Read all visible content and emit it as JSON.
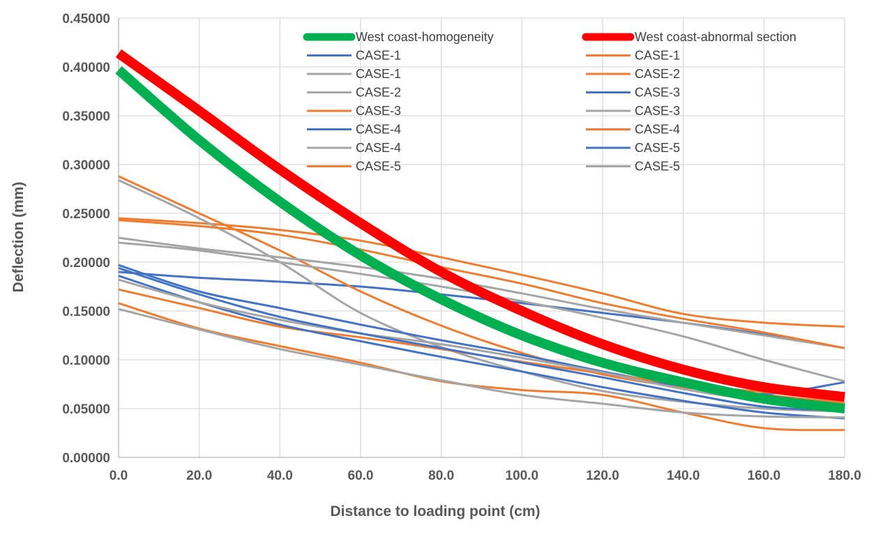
{
  "chart_data": {
    "type": "line",
    "title": "",
    "xlabel": "Distance  to loading  point  (cm)",
    "ylabel": "Deflection  (mm)",
    "xlim": [
      0,
      180
    ],
    "ylim": [
      0,
      0.45
    ],
    "x_ticks": [
      0,
      20,
      40,
      60,
      80,
      100,
      120,
      140,
      160,
      180
    ],
    "x_tick_labels": [
      "0.0",
      "20.0",
      "40.0",
      "60.0",
      "80.0",
      "100.0",
      "120.0",
      "140.0",
      "160.0",
      "180.0"
    ],
    "y_ticks": [
      0,
      0.05,
      0.1,
      0.15,
      0.2,
      0.25,
      0.3,
      0.35,
      0.4,
      0.45
    ],
    "y_tick_labels": [
      "0.00000",
      "0.05000",
      "0.10000",
      "0.15000",
      "0.20000",
      "0.25000",
      "0.30000",
      "0.35000",
      "0.40000",
      "0.45000"
    ],
    "grid": true,
    "legend_position": "top-right",
    "x": [
      0,
      20,
      40,
      60,
      80,
      100,
      120,
      140,
      160,
      180
    ],
    "series": [
      {
        "name": "West coast-homogeneity",
        "color": "#00B050",
        "weight": "heavy",
        "values": [
          0.397,
          0.325,
          0.262,
          0.207,
          0.162,
          0.125,
          0.097,
          0.077,
          0.06,
          0.05
        ]
      },
      {
        "name": "West coast-abnormal section",
        "color": "#FF0000",
        "weight": "heavy",
        "values": [
          0.414,
          0.355,
          0.295,
          0.24,
          0.19,
          0.15,
          0.116,
          0.09,
          0.072,
          0.062
        ]
      },
      {
        "name": "CASE-1",
        "color": "#4472C4",
        "weight": "normal",
        "values": [
          0.19,
          0.184,
          0.18,
          0.175,
          0.167,
          0.158,
          0.148,
          0.138,
          0.126,
          0.112
        ]
      },
      {
        "name": "CASE-1",
        "color": "#ED7D31",
        "weight": "normal",
        "values": [
          0.245,
          0.24,
          0.233,
          0.222,
          0.205,
          0.187,
          0.168,
          0.147,
          0.138,
          0.134
        ]
      },
      {
        "name": "CASE-1",
        "color": "#A5A5A5",
        "weight": "normal",
        "values": [
          0.284,
          0.245,
          0.2,
          0.148,
          0.113,
          0.088,
          0.068,
          0.057,
          0.05,
          0.047
        ]
      },
      {
        "name": "CASE-2",
        "color": "#ED7D31",
        "weight": "normal",
        "values": [
          0.288,
          0.25,
          0.212,
          0.17,
          0.135,
          0.107,
          0.085,
          0.072,
          0.064,
          0.056
        ]
      },
      {
        "name": "CASE-2",
        "color": "#A5A5A5",
        "weight": "normal",
        "values": [
          0.225,
          0.214,
          0.205,
          0.195,
          0.183,
          0.168,
          0.152,
          0.138,
          0.125,
          0.112
        ]
      },
      {
        "name": "CASE-3",
        "color": "#4472C4",
        "weight": "normal",
        "values": [
          0.197,
          0.17,
          0.153,
          0.136,
          0.12,
          0.105,
          0.088,
          0.073,
          0.065,
          0.077
        ]
      },
      {
        "name": "CASE-3",
        "color": "#ED7D31",
        "weight": "normal",
        "values": [
          0.172,
          0.153,
          0.134,
          0.123,
          0.111,
          0.098,
          0.086,
          0.075,
          0.067,
          0.06
        ]
      },
      {
        "name": "CASE-3",
        "color": "#A5A5A5",
        "weight": "normal",
        "values": [
          0.22,
          0.212,
          0.2,
          0.188,
          0.175,
          0.16,
          0.143,
          0.124,
          0.1,
          0.078
        ]
      },
      {
        "name": "CASE-4",
        "color": "#4472C4",
        "weight": "normal",
        "values": [
          0.186,
          0.159,
          0.136,
          0.119,
          0.103,
          0.088,
          0.072,
          0.058,
          0.046,
          0.04
        ]
      },
      {
        "name": "CASE-4",
        "color": "#ED7D31",
        "weight": "normal",
        "values": [
          0.158,
          0.132,
          0.114,
          0.097,
          0.078,
          0.069,
          0.064,
          0.046,
          0.03,
          0.028
        ]
      },
      {
        "name": "CASE-4",
        "color": "#A5A5A5",
        "weight": "normal",
        "values": [
          0.182,
          0.159,
          0.141,
          0.127,
          0.116,
          0.102,
          0.087,
          0.07,
          0.058,
          0.052
        ]
      },
      {
        "name": "CASE-5",
        "color": "#4472C4",
        "weight": "normal",
        "values": [
          0.194,
          0.167,
          0.144,
          0.127,
          0.112,
          0.097,
          0.082,
          0.066,
          0.052,
          0.048
        ]
      },
      {
        "name": "CASE-5",
        "color": "#ED7D31",
        "weight": "normal",
        "values": [
          0.243,
          0.237,
          0.228,
          0.213,
          0.195,
          0.178,
          0.158,
          0.142,
          0.128,
          0.112
        ]
      },
      {
        "name": "CASE-5",
        "color": "#A5A5A5",
        "weight": "normal",
        "values": [
          0.152,
          0.131,
          0.111,
          0.095,
          0.079,
          0.064,
          0.055,
          0.046,
          0.042,
          0.041
        ]
      }
    ],
    "legend": [
      {
        "label": "West coast-homogeneity",
        "color": "#00B050",
        "weight": "heavy"
      },
      {
        "label": "West coast-abnormal section",
        "color": "#FF0000",
        "weight": "heavy"
      },
      {
        "label": "CASE-1",
        "color": "#4472C4",
        "weight": "normal"
      },
      {
        "label": "CASE-1",
        "color": "#ED7D31",
        "weight": "normal"
      },
      {
        "label": "CASE-1",
        "color": "#A5A5A5",
        "weight": "normal"
      },
      {
        "label": "CASE-2",
        "color": "#ED7D31",
        "weight": "normal"
      },
      {
        "label": "CASE-2",
        "color": "#A5A5A5",
        "weight": "normal"
      },
      {
        "label": "CASE-3",
        "color": "#4472C4",
        "weight": "normal"
      },
      {
        "label": "CASE-3",
        "color": "#ED7D31",
        "weight": "normal"
      },
      {
        "label": "CASE-3",
        "color": "#A5A5A5",
        "weight": "normal"
      },
      {
        "label": "CASE-4",
        "color": "#4472C4",
        "weight": "normal"
      },
      {
        "label": "CASE-4",
        "color": "#ED7D31",
        "weight": "normal"
      },
      {
        "label": "CASE-4",
        "color": "#A5A5A5",
        "weight": "normal"
      },
      {
        "label": "CASE-5",
        "color": "#4472C4",
        "weight": "normal"
      },
      {
        "label": "CASE-5",
        "color": "#ED7D31",
        "weight": "normal"
      },
      {
        "label": "CASE-5",
        "color": "#A5A5A5",
        "weight": "normal"
      }
    ],
    "colors": {
      "grid": "#D9D9D9",
      "axis": "#BFBFBF",
      "text": "#595959"
    }
  }
}
